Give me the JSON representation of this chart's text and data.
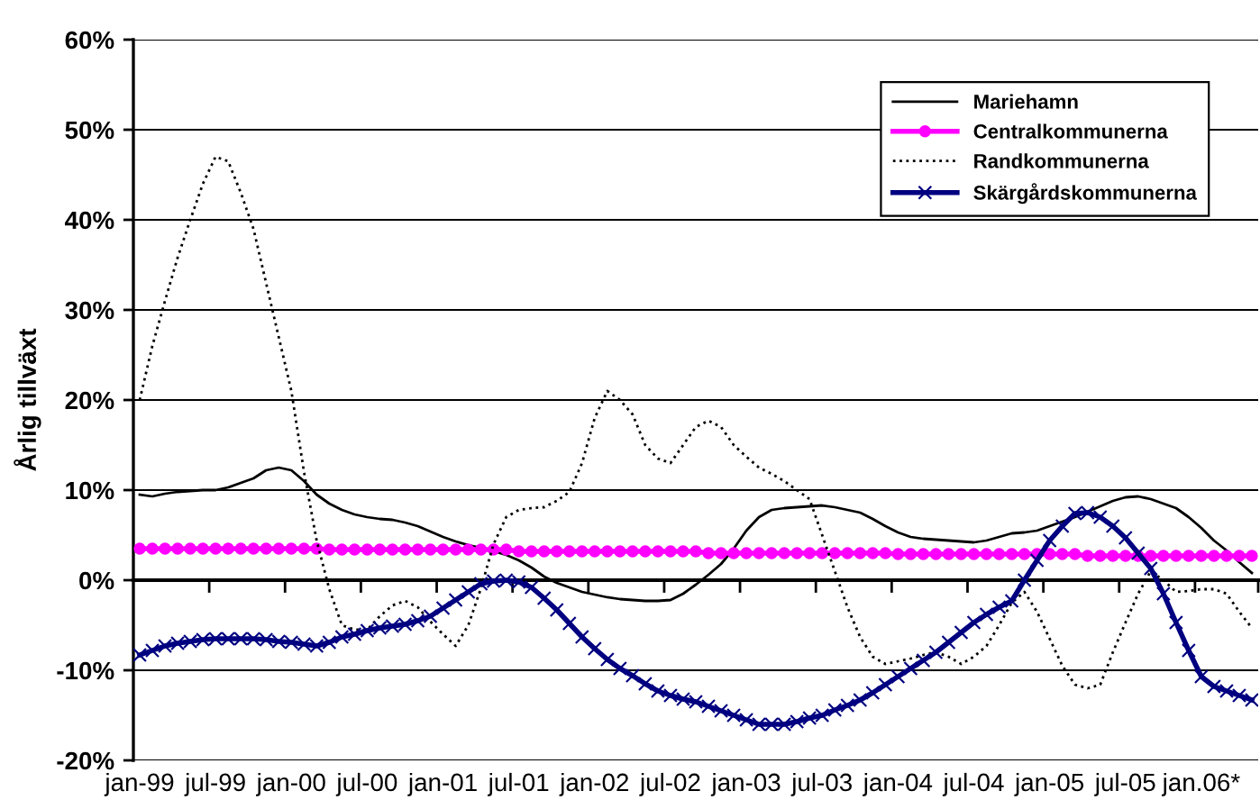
{
  "chart_data": {
    "type": "line",
    "ylabel": "Årlig tillväxt",
    "categories": [
      "jan-99",
      null,
      null,
      null,
      null,
      null,
      "jul-99",
      null,
      null,
      null,
      null,
      null,
      "jan-00",
      null,
      null,
      null,
      null,
      null,
      "jul-00",
      null,
      null,
      null,
      null,
      null,
      "jan-01",
      null,
      null,
      null,
      null,
      null,
      "jul-01",
      null,
      null,
      null,
      null,
      null,
      "jan-02",
      null,
      null,
      null,
      null,
      null,
      "jul-02",
      null,
      null,
      null,
      null,
      null,
      "jan-03",
      null,
      null,
      null,
      null,
      null,
      "jul-03",
      null,
      null,
      null,
      null,
      null,
      "jan-04",
      null,
      null,
      null,
      null,
      null,
      "jul-04",
      null,
      null,
      null,
      null,
      null,
      "jan-05",
      null,
      null,
      null,
      null,
      null,
      "jul-05",
      null,
      null,
      null,
      null,
      null,
      "jan.06*",
      null,
      null,
      null,
      null
    ],
    "series": [
      {
        "name": "Mariehamn",
        "color": "#000000",
        "line_style": "solid",
        "marker": "none",
        "values": [
          9.5,
          9.3,
          9.6,
          9.8,
          9.9,
          10,
          10,
          10.3,
          10.8,
          11.3,
          12.2,
          12.5,
          12.2,
          11,
          9.5,
          8.5,
          7.8,
          7.3,
          7,
          6.8,
          6.7,
          6.4,
          6,
          5.4,
          4.8,
          4.3,
          3.9,
          3.6,
          3.2,
          2.8,
          2.2,
          1.4,
          0.4,
          -0.3,
          -0.8,
          -1.3,
          -1.6,
          -1.9,
          -2.1,
          -2.2,
          -2.3,
          -2.3,
          -2.2,
          -1.5,
          -0.5,
          0.6,
          1.8,
          3.5,
          5.5,
          7,
          7.8,
          8,
          8.1,
          8.2,
          8.3,
          8.1,
          7.8,
          7.5,
          6.8,
          6,
          5.3,
          4.8,
          4.6,
          4.5,
          4.4,
          4.3,
          4.2,
          4.4,
          4.8,
          5.2,
          5.3,
          5.5,
          6,
          6.5,
          7,
          7.6,
          8.2,
          8.8,
          9.2,
          9.3,
          9,
          8.5,
          8,
          7,
          5.8,
          4.4,
          3.3,
          2,
          0.8
        ]
      },
      {
        "name": "Centralkommunerna",
        "color": "#ff00ff",
        "line_style": "solid",
        "marker": "circle",
        "values": [
          3.5,
          3.5,
          3.5,
          3.5,
          3.5,
          3.5,
          3.5,
          3.5,
          3.5,
          3.5,
          3.5,
          3.5,
          3.5,
          3.5,
          3.5,
          3.4,
          3.4,
          3.4,
          3.4,
          3.4,
          3.4,
          3.4,
          3.4,
          3.4,
          3.4,
          3.4,
          3.4,
          3.4,
          3.4,
          3.4,
          3.2,
          3.2,
          3.2,
          3.2,
          3.2,
          3.2,
          3.2,
          3.2,
          3.2,
          3.2,
          3.2,
          3.2,
          3.2,
          3.2,
          3.2,
          3.0,
          3.0,
          3.0,
          3.0,
          3.0,
          3.0,
          3.0,
          3.0,
          3.0,
          3.0,
          3.0,
          3.0,
          3.0,
          3.0,
          3.0,
          2.9,
          2.9,
          2.9,
          2.9,
          2.9,
          2.9,
          2.9,
          2.9,
          2.9,
          2.9,
          2.9,
          2.9,
          2.9,
          2.9,
          2.9,
          2.7,
          2.7,
          2.7,
          2.7,
          2.7,
          2.7,
          2.7,
          2.7,
          2.7,
          2.7,
          2.7,
          2.7,
          2.7,
          2.7
        ]
      },
      {
        "name": "Randkommunerna",
        "color": "#000000",
        "line_style": "dotted",
        "marker": "none",
        "values": [
          20,
          26,
          31,
          35.8,
          40,
          44,
          47,
          46.5,
          43,
          39,
          33,
          27,
          21,
          12,
          4.4,
          -1,
          -5,
          -5.5,
          -5.5,
          -4,
          -2.8,
          -2.3,
          -3,
          -4.6,
          -6,
          -7.3,
          -5,
          -0.9,
          4,
          7,
          7.8,
          8,
          8.1,
          8.8,
          9.8,
          13,
          18,
          21,
          20,
          18.4,
          15,
          13.5,
          13,
          15,
          17,
          17.7,
          17,
          15,
          13.7,
          12.5,
          11.8,
          11,
          10,
          9,
          5,
          1,
          -3,
          -6.3,
          -8.5,
          -9.3,
          -9,
          -8.7,
          -8.3,
          -8,
          -8.5,
          -9.3,
          -8.5,
          -7.3,
          -5,
          -2.5,
          -1.3,
          -3.5,
          -6.5,
          -9.5,
          -11.6,
          -12,
          -11.6,
          -8,
          -4.7,
          -1.5,
          1,
          0,
          -1.3,
          -1.2,
          -1,
          -1,
          -1.5,
          -3.5,
          -5.3
        ]
      },
      {
        "name": "Skärgårdskommunerna",
        "color": "#000080",
        "line_style": "solid",
        "marker": "cross",
        "values": [
          -8.3,
          -7.8,
          -7.3,
          -7,
          -6.8,
          -6.6,
          -6.5,
          -6.5,
          -6.5,
          -6.5,
          -6.6,
          -6.8,
          -6.9,
          -7.1,
          -7.3,
          -6.9,
          -6.3,
          -6,
          -5.6,
          -5.3,
          -5.1,
          -4.9,
          -4.5,
          -4,
          -3.1,
          -2.2,
          -1.3,
          -0.4,
          -0.1,
          0,
          -0.2,
          -0.8,
          -2,
          -3.3,
          -4.8,
          -6.3,
          -7.6,
          -8.8,
          -9.8,
          -10.6,
          -11.5,
          -12.3,
          -12.8,
          -13.2,
          -13.5,
          -14,
          -14.5,
          -15,
          -15.5,
          -16,
          -16,
          -16,
          -15.7,
          -15.3,
          -15,
          -14.4,
          -13.9,
          -13.3,
          -12.5,
          -11.6,
          -10.7,
          -9.8,
          -8.9,
          -8,
          -6.9,
          -5.8,
          -4.7,
          -3.8,
          -3,
          -2.3,
          0,
          2.2,
          4.4,
          6,
          7.4,
          7.5,
          7,
          6,
          4.7,
          3,
          1.3,
          -1.5,
          -4.7,
          -7.8,
          -10.7,
          -11.8,
          -12.3,
          -12.8,
          -13.3
        ]
      }
    ],
    "ylim": [
      -20,
      60
    ],
    "yticks": [
      {
        "value": -20,
        "label": "-20%"
      },
      {
        "value": -10,
        "label": "-10%"
      },
      {
        "value": 0,
        "label": "0%"
      },
      {
        "value": 10,
        "label": "10%"
      },
      {
        "value": 20,
        "label": "20%"
      },
      {
        "value": 30,
        "label": "30%"
      },
      {
        "value": 40,
        "label": "40%"
      },
      {
        "value": 50,
        "label": "50%"
      },
      {
        "value": 60,
        "label": "60%"
      }
    ],
    "grid": "y",
    "legend": "top right"
  }
}
